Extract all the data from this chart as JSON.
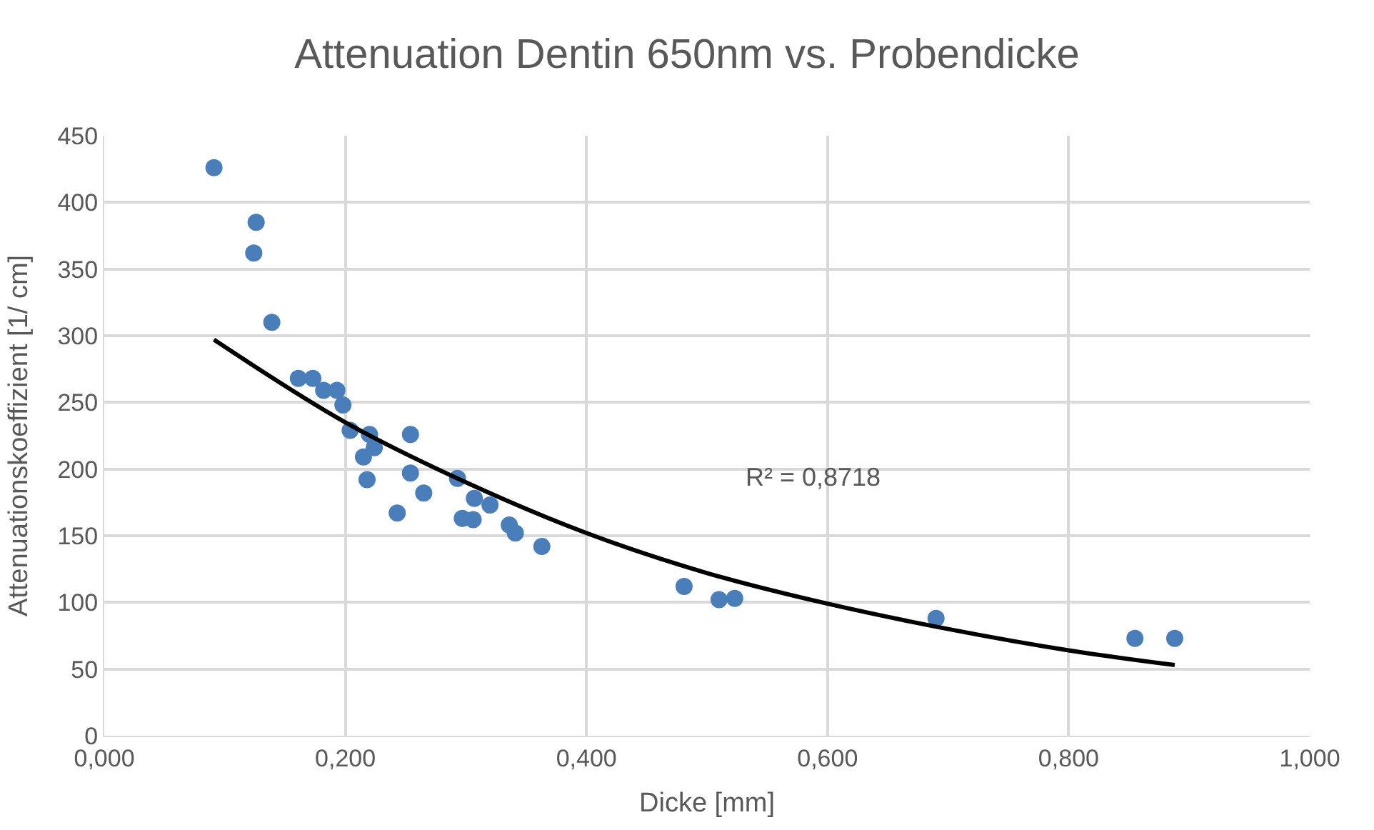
{
  "chart_data": {
    "type": "scatter",
    "title": "Attenuation Dentin 650nm vs. Probendicke",
    "xlabel": "Dicke [mm]",
    "ylabel": "Attenuationskoeffizient [1/ cm]",
    "xlim": [
      0,
      1
    ],
    "xticks": [
      {
        "value": 0,
        "label": "0,000"
      },
      {
        "value": 0.2,
        "label": "0,200"
      },
      {
        "value": 0.4,
        "label": "0,400"
      },
      {
        "value": 0.6,
        "label": "0,600"
      },
      {
        "value": 0.8,
        "label": "0,800"
      },
      {
        "value": 1,
        "label": "1,000"
      }
    ],
    "ylim": [
      0,
      450
    ],
    "yticks": [
      0,
      50,
      100,
      150,
      200,
      250,
      300,
      350,
      400,
      450
    ],
    "grid": true,
    "legend": false,
    "series": [
      {
        "marker": "circle",
        "color": "#4a7ebb",
        "x": [
          0.091,
          0.126,
          0.124,
          0.139,
          0.161,
          0.173,
          0.182,
          0.193,
          0.198,
          0.204,
          0.22,
          0.224,
          0.215,
          0.218,
          0.254,
          0.254,
          0.265,
          0.243,
          0.293,
          0.307,
          0.32,
          0.297,
          0.306,
          0.336,
          0.341,
          0.363,
          0.481,
          0.51,
          0.523,
          0.69,
          0.855,
          0.888
        ],
        "values": [
          426,
          385,
          362,
          310,
          268,
          268,
          259,
          259,
          248,
          229,
          226,
          216,
          209,
          192,
          226,
          197,
          182,
          167,
          193,
          178,
          173,
          163,
          162,
          158,
          152,
          142,
          112,
          102,
          103,
          88,
          73,
          73
        ]
      },
      {
        "type": "line",
        "marker": "none",
        "color": "#000000",
        "x": [
          0.091,
          0.2,
          0.3,
          0.4,
          0.5,
          0.6,
          0.7,
          0.8,
          0.888
        ],
        "values": [
          297,
          235,
          190,
          152,
          122,
          99,
          80,
          64,
          53
        ]
      }
    ],
    "annotations": [
      "R² = 0,8718"
    ]
  }
}
